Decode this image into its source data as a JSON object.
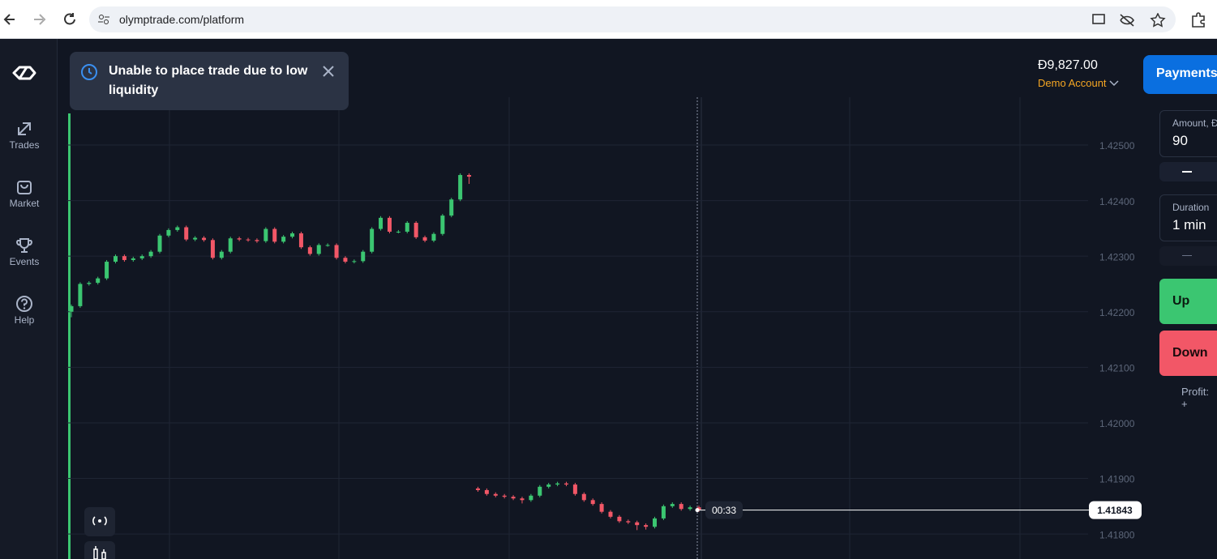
{
  "browser": {
    "url": "olymptrade.com/platform"
  },
  "sidebar": {
    "items": [
      "Trades",
      "Market",
      "Events",
      "Help"
    ]
  },
  "toast": {
    "message": "Unable to place trade due to low liquidity"
  },
  "account": {
    "balance": "Đ9,827.00",
    "type": "Demo Account"
  },
  "header": {
    "payments": "Payments"
  },
  "trade_panel": {
    "amount_label": "Amount, Đ",
    "amount": "90",
    "duration_label": "Duration",
    "duration": "1 min",
    "up_button": "Up",
    "down_button": "Down",
    "profit_label": "Profit: +"
  },
  "chart_data": {
    "type": "candlestick",
    "up_color": "#3bc671",
    "down_color": "#f25767",
    "open": [
      1.422,
      1.4221,
      1.4225,
      1.42252,
      1.4226,
      1.4229,
      1.423,
      1.42293,
      1.42296,
      1.423,
      1.42308,
      1.42337,
      1.42347,
      1.42352,
      1.4233,
      1.42333,
      1.42329,
      1.42297,
      1.42308,
      1.42332,
      1.4233,
      1.42329,
      1.42327,
      1.42349,
      1.42326,
      1.42335,
      1.42341,
      1.42316,
      1.42304,
      1.4232,
      1.4232,
      1.42297,
      1.4229,
      1.42291,
      1.42308,
      1.42349,
      1.42369,
      1.42344,
      1.42344,
      1.4236,
      1.42334,
      1.42328,
      1.4234,
      1.42373,
      1.42402,
      1.42446,
      1.41882,
      1.41879,
      1.41872,
      1.41869,
      1.41867,
      1.41864,
      1.41861,
      1.41869,
      1.41885,
      1.41889,
      1.41891,
      1.41889,
      1.41872,
      1.41861,
      1.41854,
      1.4184,
      1.41831,
      1.41823,
      1.41821,
      1.41816,
      1.41813,
      1.41828,
      1.4185,
      1.41854,
      1.41845,
      1.41848
    ],
    "high": [
      1.42213,
      1.42253,
      1.42255,
      1.42263,
      1.42293,
      1.42303,
      1.42303,
      1.42299,
      1.42303,
      1.42311,
      1.4234,
      1.4235,
      1.42355,
      1.42355,
      1.42336,
      1.42336,
      1.42332,
      1.42311,
      1.42335,
      1.42335,
      1.42333,
      1.42332,
      1.42352,
      1.42352,
      1.42338,
      1.42344,
      1.42344,
      1.42319,
      1.42323,
      1.42323,
      1.42323,
      1.423,
      1.42294,
      1.42311,
      1.42352,
      1.42372,
      1.42372,
      1.42347,
      1.42363,
      1.42363,
      1.42337,
      1.42343,
      1.42376,
      1.42405,
      1.42449,
      1.42449,
      1.41885,
      1.41882,
      1.41875,
      1.41872,
      1.4187,
      1.41867,
      1.41872,
      1.41888,
      1.41892,
      1.41894,
      1.41894,
      1.41892,
      1.41875,
      1.41864,
      1.41857,
      1.41843,
      1.41834,
      1.41826,
      1.41824,
      1.41819,
      1.41831,
      1.41853,
      1.41857,
      1.41857,
      1.41851,
      1.41851
    ],
    "low": [
      1.4219,
      1.42207,
      1.42247,
      1.42249,
      1.42257,
      1.42287,
      1.4229,
      1.4229,
      1.42293,
      1.42297,
      1.42305,
      1.42334,
      1.42344,
      1.42327,
      1.42327,
      1.42326,
      1.42294,
      1.42294,
      1.42305,
      1.42327,
      1.42326,
      1.42324,
      1.42324,
      1.42323,
      1.42323,
      1.42332,
      1.42313,
      1.42301,
      1.42301,
      1.42317,
      1.42294,
      1.42287,
      1.42287,
      1.42288,
      1.42305,
      1.42346,
      1.42341,
      1.42341,
      1.42341,
      1.42331,
      1.42325,
      1.42325,
      1.42337,
      1.4237,
      1.42399,
      1.4243,
      1.41876,
      1.41869,
      1.41866,
      1.41864,
      1.41861,
      1.41855,
      1.41858,
      1.41866,
      1.41882,
      1.41886,
      1.41886,
      1.41869,
      1.41858,
      1.41851,
      1.41837,
      1.41828,
      1.4182,
      1.41818,
      1.41807,
      1.41808,
      1.4181,
      1.41825,
      1.41847,
      1.41842,
      1.41842,
      1.4184
    ],
    "close": [
      1.4221,
      1.4225,
      1.42252,
      1.4226,
      1.4229,
      1.423,
      1.42293,
      1.42296,
      1.423,
      1.42308,
      1.42337,
      1.42347,
      1.42352,
      1.4233,
      1.42333,
      1.42329,
      1.42297,
      1.42308,
      1.42332,
      1.4233,
      1.42329,
      1.42327,
      1.42349,
      1.42326,
      1.42335,
      1.42341,
      1.42316,
      1.42304,
      1.4232,
      1.4232,
      1.42297,
      1.4229,
      1.42291,
      1.42308,
      1.42349,
      1.42369,
      1.42344,
      1.42344,
      1.4236,
      1.42334,
      1.42328,
      1.4234,
      1.42373,
      1.42402,
      1.42446,
      1.42443,
      1.41879,
      1.41872,
      1.41869,
      1.41867,
      1.41864,
      1.41861,
      1.41869,
      1.41885,
      1.41889,
      1.41891,
      1.41889,
      1.41872,
      1.41861,
      1.41854,
      1.4184,
      1.41831,
      1.41823,
      1.41821,
      1.41816,
      1.41813,
      1.41828,
      1.4185,
      1.41854,
      1.41845,
      1.41848,
      1.41843
    ],
    "ylim": [
      1.41755,
      1.42586
    ],
    "yticks": [
      {
        "value": 1.418,
        "label": "1.41800"
      },
      {
        "value": 1.419,
        "label": "1.41900"
      },
      {
        "value": 1.42,
        "label": "1.42000"
      },
      {
        "value": 1.421,
        "label": "1.42100"
      },
      {
        "value": 1.422,
        "label": "1.42200"
      },
      {
        "value": 1.423,
        "label": "1.42300"
      },
      {
        "value": 1.424,
        "label": "1.42400"
      },
      {
        "value": 1.425,
        "label": "1.42500"
      }
    ],
    "grid": true,
    "current_price": {
      "value": 1.41843,
      "label": "1.41843"
    },
    "timer": "00:33"
  }
}
